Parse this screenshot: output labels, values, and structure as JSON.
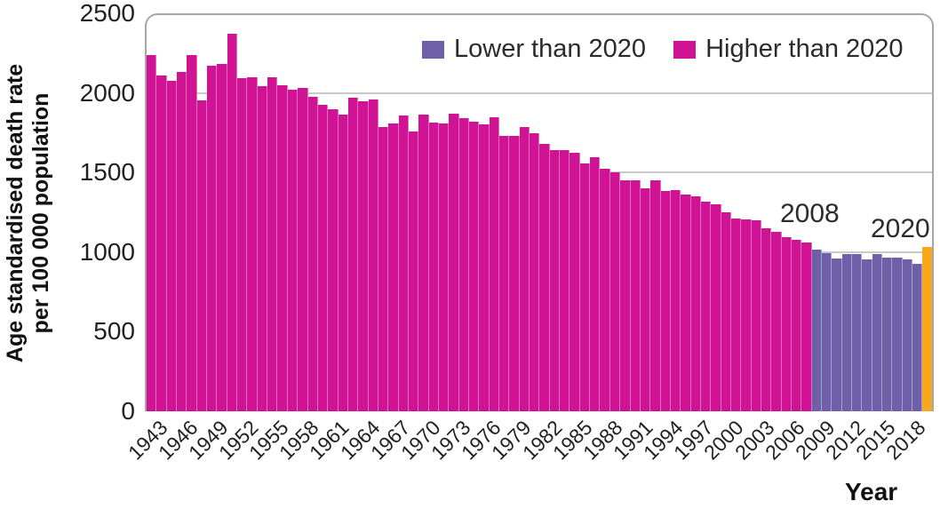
{
  "chart_data": {
    "type": "bar",
    "title": "",
    "ylabel_line1": "Age standardised death rate",
    "ylabel_line2": "per 100 000 population",
    "xlabel": "Year",
    "ylim": [
      0,
      2500
    ],
    "yticks": [
      0,
      500,
      1000,
      1500,
      2000,
      2500
    ],
    "gridline_values": [
      500,
      1000,
      1500,
      2000
    ],
    "labeled_years": [
      1943,
      1946,
      1949,
      1952,
      1955,
      1958,
      1961,
      1964,
      1967,
      1970,
      1973,
      1976,
      1979,
      1982,
      1985,
      1988,
      1991,
      1994,
      1997,
      2000,
      2003,
      2006,
      2009,
      2012,
      2015,
      2018
    ],
    "years": [
      1943,
      1944,
      1945,
      1946,
      1947,
      1948,
      1949,
      1950,
      1951,
      1952,
      1953,
      1954,
      1955,
      1956,
      1957,
      1958,
      1959,
      1960,
      1961,
      1962,
      1963,
      1964,
      1965,
      1966,
      1967,
      1968,
      1969,
      1970,
      1971,
      1972,
      1973,
      1974,
      1975,
      1976,
      1977,
      1978,
      1979,
      1980,
      1981,
      1982,
      1983,
      1984,
      1985,
      1986,
      1987,
      1988,
      1989,
      1990,
      1991,
      1992,
      1993,
      1994,
      1995,
      1996,
      1997,
      1998,
      1999,
      2000,
      2001,
      2002,
      2003,
      2004,
      2005,
      2006,
      2007,
      2008,
      2009,
      2010,
      2011,
      2012,
      2013,
      2014,
      2015,
      2016,
      2017,
      2018,
      2019,
      2020
    ],
    "values": [
      2250,
      2120,
      2085,
      2140,
      2250,
      1960,
      2180,
      2190,
      2380,
      2100,
      2105,
      2050,
      2110,
      2060,
      2030,
      2040,
      1985,
      1935,
      1905,
      1870,
      1980,
      1955,
      1965,
      1795,
      1815,
      1865,
      1765,
      1870,
      1820,
      1815,
      1880,
      1850,
      1825,
      1810,
      1855,
      1735,
      1740,
      1795,
      1755,
      1685,
      1650,
      1650,
      1630,
      1565,
      1605,
      1530,
      1510,
      1455,
      1455,
      1405,
      1455,
      1390,
      1395,
      1370,
      1355,
      1325,
      1305,
      1255,
      1215,
      1210,
      1205,
      1155,
      1130,
      1100,
      1080,
      1065,
      1020,
      1000,
      965,
      990,
      990,
      960,
      995,
      970,
      970,
      960,
      930,
      1035
    ],
    "series_rule": {
      "higher_than_2020_years": "1943-2008",
      "lower_than_2020_years": "2009-2019",
      "highlight_year": 2020
    },
    "colors": {
      "higher": "#d01295",
      "lower": "#6e5fa8",
      "year2020": "#f8a71e",
      "grid": "#c9c9c9",
      "frame": "#a6a6a6",
      "text": "#231f20"
    },
    "legend": [
      {
        "label": "Lower than 2020",
        "color_key": "lower"
      },
      {
        "label": "Higher than 2020",
        "color_key": "higher"
      }
    ],
    "annotations": [
      {
        "text": "2008"
      },
      {
        "text": "2020"
      }
    ],
    "legend_position": "top-right-inside",
    "grid": "horizontal-only"
  }
}
